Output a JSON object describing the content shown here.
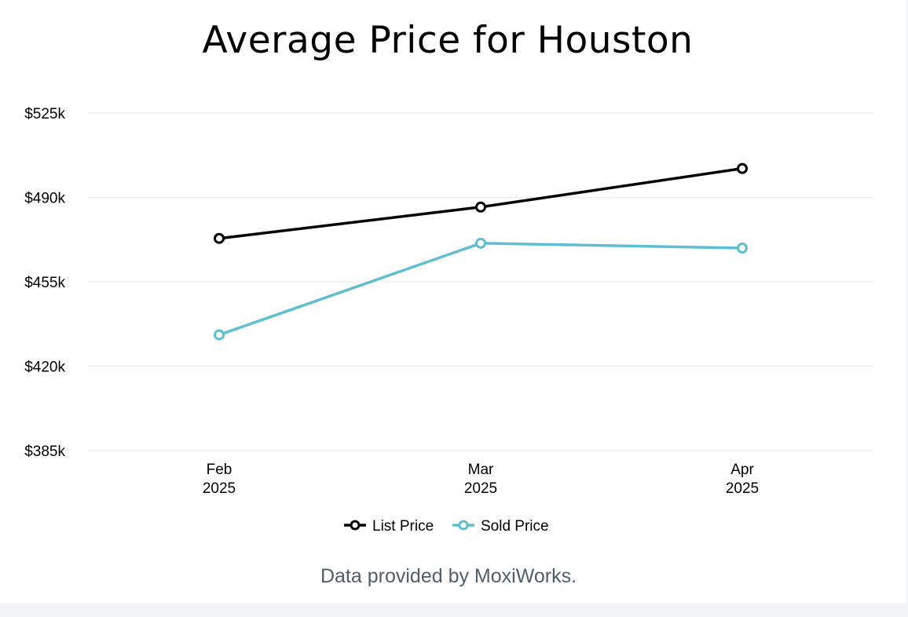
{
  "chart_data": {
    "type": "line",
    "title": "Average Price for Houston",
    "categories": [
      [
        "Feb",
        "2025"
      ],
      [
        "Mar",
        "2025"
      ],
      [
        "Apr",
        "2025"
      ]
    ],
    "y_ticks": [
      "$385k",
      "$420k",
      "$455k",
      "$490k",
      "$525k"
    ],
    "ylim": [
      385000,
      525000
    ],
    "y_tick_values": [
      385000,
      420000,
      455000,
      490000,
      525000
    ],
    "grid": true,
    "legend_position": "bottom",
    "series": [
      {
        "name": "List Price",
        "values": [
          473000,
          486000,
          502000
        ],
        "color": "#000000"
      },
      {
        "name": "Sold Price",
        "values": [
          433000,
          471000,
          469000
        ],
        "color": "#5fbfd2"
      }
    ]
  },
  "footer": {
    "source": "Data provided by MoxiWorks."
  }
}
